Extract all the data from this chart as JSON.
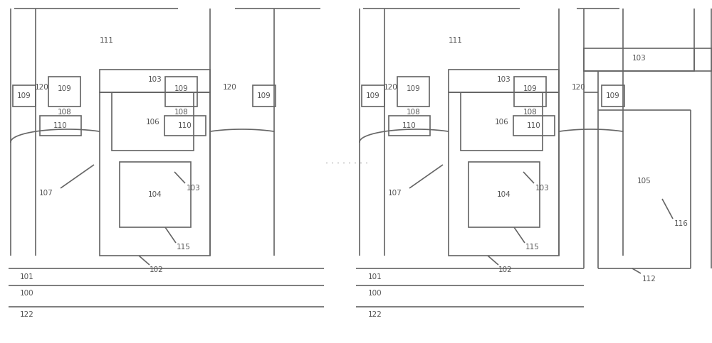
{
  "bg_color": "#ffffff",
  "line_color": "#666666",
  "line_width": 1.2,
  "fig_width": 10.0,
  "fig_height": 4.83,
  "dpi": 100,
  "label_fontsize": 7.5,
  "label_color": "#555555"
}
